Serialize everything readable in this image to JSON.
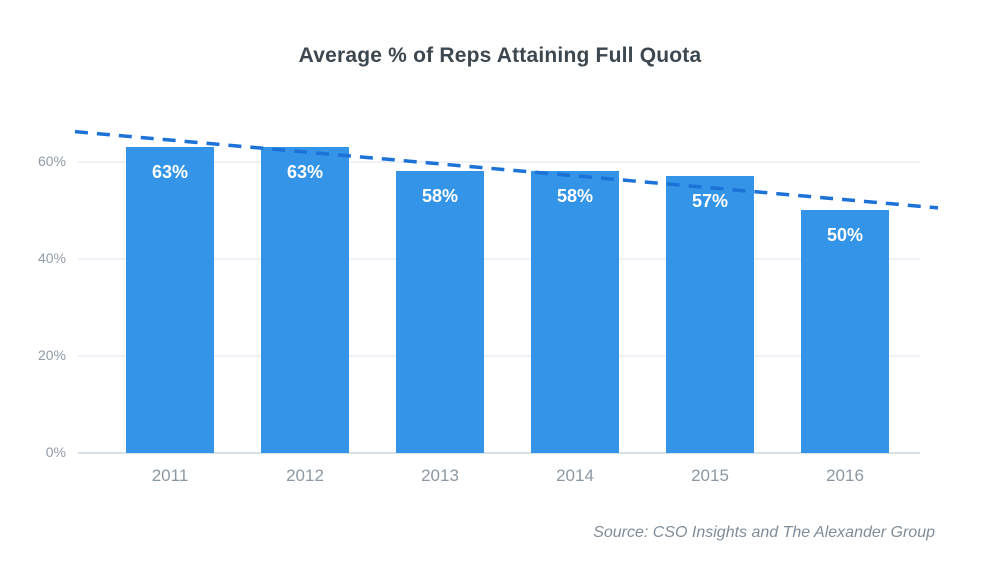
{
  "chart_data": {
    "type": "bar",
    "title": "Average % of Reps Attaining Full Quota",
    "categories": [
      "2011",
      "2012",
      "2013",
      "2014",
      "2015",
      "2016"
    ],
    "values": [
      63,
      63,
      58,
      58,
      57,
      50
    ],
    "bar_label_suffix": "%",
    "xlabel": "",
    "ylabel": "",
    "ylim": [
      0,
      72.7
    ],
    "y_ticks": [
      {
        "value": 0,
        "label": "0%"
      },
      {
        "value": 20,
        "label": "20%"
      },
      {
        "value": 40,
        "label": "40%"
      },
      {
        "value": 60,
        "label": "60%"
      }
    ],
    "grid": "horizontal-only",
    "legend_position": "none",
    "trendline": {
      "style": "dashed",
      "start_pct": 66.2,
      "end_pct": 50.5,
      "description": "downward linear trend line spanning full chart width"
    },
    "source": "Source: CSO Insights and The Alexander Group",
    "colors": {
      "bar": "#3394e8",
      "trendline": "#1c72d6",
      "title_text": "#3c474f",
      "axis_tick_text": "#8d99a4",
      "value_label_text": "#ffffff",
      "gridline": "#eef2f6",
      "baseline": "#d9e1e8",
      "source_text": "#7f8d99",
      "background": "#ffffff"
    }
  }
}
